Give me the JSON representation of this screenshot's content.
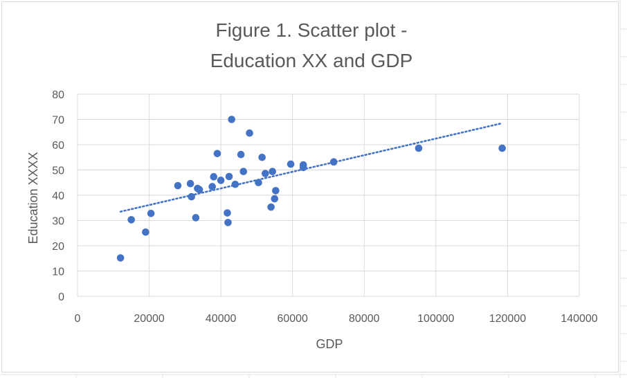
{
  "chart_data": {
    "type": "scatter",
    "title_lines": [
      "Figure 1. Scatter plot  -",
      "Education XX and GDP"
    ],
    "xlabel": "GDP",
    "ylabel": "Education XXXX",
    "xlim": [
      0,
      140000
    ],
    "ylim": [
      0,
      80
    ],
    "x_ticks": [
      0,
      20000,
      40000,
      60000,
      80000,
      100000,
      120000,
      140000
    ],
    "y_ticks": [
      0,
      10,
      20,
      30,
      40,
      50,
      60,
      70,
      80
    ],
    "x_tick_labels": [
      "0",
      "20000",
      "40000",
      "60000",
      "80000",
      "100000",
      "120000",
      "140000"
    ],
    "y_tick_labels": [
      "0",
      "10",
      "20",
      "30",
      "40",
      "50",
      "60",
      "70",
      "80"
    ],
    "grid": "horizontal",
    "legend": "none",
    "marker_color": "#4472c4",
    "trendline": {
      "type": "linear",
      "style": "dotted",
      "x": [
        12000,
        118500
      ],
      "y": [
        33.5,
        68.5
      ]
    },
    "points": [
      {
        "x": 12000,
        "y": 15.2
      },
      {
        "x": 15000,
        "y": 30.3
      },
      {
        "x": 19000,
        "y": 25.4
      },
      {
        "x": 20500,
        "y": 32.8
      },
      {
        "x": 28000,
        "y": 43.8
      },
      {
        "x": 31500,
        "y": 44.6
      },
      {
        "x": 31800,
        "y": 39.4
      },
      {
        "x": 33000,
        "y": 31.1
      },
      {
        "x": 33500,
        "y": 42.7
      },
      {
        "x": 34000,
        "y": 42.2
      },
      {
        "x": 37600,
        "y": 43.4
      },
      {
        "x": 38000,
        "y": 47.3
      },
      {
        "x": 39000,
        "y": 56.5
      },
      {
        "x": 40000,
        "y": 45.9
      },
      {
        "x": 41800,
        "y": 33.0
      },
      {
        "x": 42000,
        "y": 29.2
      },
      {
        "x": 42300,
        "y": 47.4
      },
      {
        "x": 43000,
        "y": 70.0
      },
      {
        "x": 44000,
        "y": 44.3
      },
      {
        "x": 45600,
        "y": 56.1
      },
      {
        "x": 46300,
        "y": 49.4
      },
      {
        "x": 48000,
        "y": 64.6
      },
      {
        "x": 50500,
        "y": 45.0
      },
      {
        "x": 51500,
        "y": 55.0
      },
      {
        "x": 52400,
        "y": 48.6
      },
      {
        "x": 54000,
        "y": 35.3
      },
      {
        "x": 54400,
        "y": 49.4
      },
      {
        "x": 55000,
        "y": 38.6
      },
      {
        "x": 55300,
        "y": 41.8
      },
      {
        "x": 59500,
        "y": 52.3
      },
      {
        "x": 63000,
        "y": 52.0
      },
      {
        "x": 63000,
        "y": 51.0
      },
      {
        "x": 71500,
        "y": 53.2
      },
      {
        "x": 95200,
        "y": 58.6
      },
      {
        "x": 118500,
        "y": 58.6
      }
    ]
  }
}
